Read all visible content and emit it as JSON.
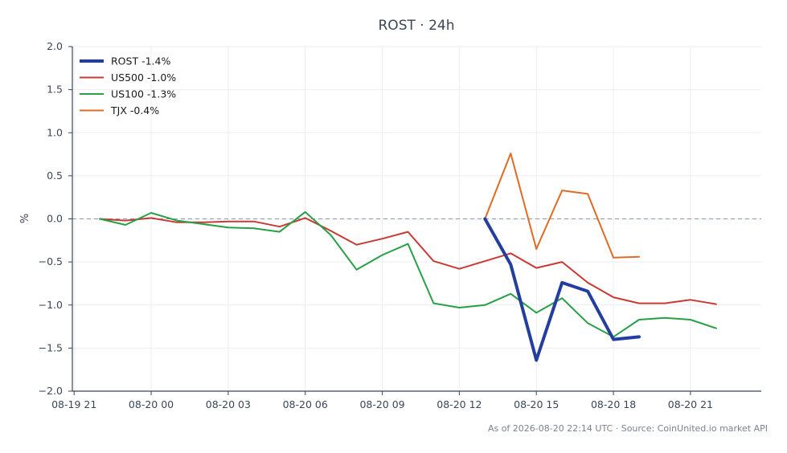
{
  "chart_data": {
    "type": "line",
    "title": "ROST · 24h",
    "ylabel": "%",
    "xlabel": "",
    "ylim": [
      -2.0,
      2.0
    ],
    "yticks": [
      "2.0",
      "1.5",
      "1.0",
      "0.5",
      "0.0",
      "−0.5",
      "−1.0",
      "−1.5",
      "−2.0"
    ],
    "ytick_values": [
      2.0,
      1.5,
      1.0,
      0.5,
      0.0,
      -0.5,
      -1.0,
      -1.5,
      -2.0
    ],
    "xticks": [
      "08-19 21",
      "08-20 00",
      "08-20 03",
      "08-20 06",
      "08-20 09",
      "08-20 12",
      "08-20 15",
      "08-20 18",
      "08-20 21"
    ],
    "xtick_hours": [
      0,
      3,
      6,
      9,
      12,
      15,
      18,
      21,
      24
    ],
    "xlim_hours": [
      0,
      25.5
    ],
    "grid": true,
    "zero_line": true,
    "legend_position": "top-left",
    "series": [
      {
        "name": "ROST -1.4%",
        "color": "#233e9c",
        "width": 4,
        "x": [
          16,
          17,
          18,
          19,
          20,
          21,
          22
        ],
        "values": [
          0.0,
          -0.53,
          -1.64,
          -0.74,
          -0.84,
          -1.4,
          -1.37
        ]
      },
      {
        "name": "US500 -1.0%",
        "color": "#c83a32",
        "width": 2,
        "x": [
          1,
          2,
          3,
          4,
          5,
          6,
          7,
          8,
          9,
          10,
          11,
          12,
          13,
          14,
          15,
          16,
          17,
          18,
          19,
          20,
          21,
          22,
          23,
          24,
          25
        ],
        "values": [
          0.0,
          -0.02,
          0.01,
          -0.04,
          -0.04,
          -0.03,
          -0.03,
          -0.09,
          0.01,
          -0.14,
          -0.3,
          -0.23,
          -0.15,
          -0.49,
          -0.58,
          -0.49,
          -0.4,
          -0.57,
          -0.5,
          -0.74,
          -0.91,
          -0.98,
          -0.98,
          -0.94,
          -0.99
        ]
      },
      {
        "name": "US100 -1.3%",
        "color": "#27a047",
        "width": 2,
        "x": [
          1,
          2,
          3,
          4,
          5,
          6,
          7,
          8,
          9,
          10,
          11,
          12,
          13,
          14,
          15,
          16,
          17,
          18,
          19,
          20,
          21,
          22,
          23,
          24,
          25
        ],
        "values": [
          0.0,
          -0.07,
          0.07,
          -0.02,
          -0.06,
          -0.1,
          -0.11,
          -0.15,
          0.08,
          -0.19,
          -0.59,
          -0.42,
          -0.29,
          -0.98,
          -1.03,
          -1.0,
          -0.87,
          -1.09,
          -0.92,
          -1.21,
          -1.37,
          -1.17,
          -1.15,
          -1.17,
          -1.27
        ]
      },
      {
        "name": "TJX -0.4%",
        "color": "#e06b22",
        "width": 2,
        "x": [
          16,
          17,
          18,
          19,
          20,
          21,
          22
        ],
        "values": [
          0.0,
          0.76,
          -0.35,
          0.33,
          0.29,
          -0.45,
          -0.44
        ]
      }
    ]
  },
  "footer": {
    "source_text": "As of 2026-08-20 22:14 UTC · Source: CoinUnited.io market API"
  }
}
